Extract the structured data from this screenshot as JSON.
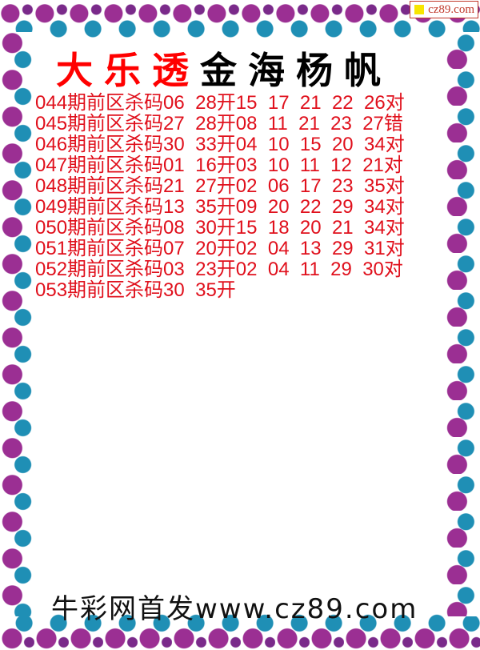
{
  "badge": {
    "text": "cz89.com",
    "color": "#f7e600"
  },
  "title": {
    "red": "大乐透",
    "black": "金海杨帆"
  },
  "row_labels": {
    "mid": "期前区杀码",
    "draw": "开"
  },
  "rows": [
    {
      "issue": "044",
      "kill": [
        "06",
        "28"
      ],
      "draw": [
        "15",
        "17",
        "21",
        "22",
        "26"
      ],
      "result": "对"
    },
    {
      "issue": "045",
      "kill": [
        "27",
        "28"
      ],
      "draw": [
        "08",
        "11",
        "21",
        "23",
        "27"
      ],
      "result": "错"
    },
    {
      "issue": "046",
      "kill": [
        "30",
        "33"
      ],
      "draw": [
        "04",
        "10",
        "15",
        "20",
        "34"
      ],
      "result": "对"
    },
    {
      "issue": "047",
      "kill": [
        "01",
        "16"
      ],
      "draw": [
        "03",
        "10",
        "11",
        "12",
        "21"
      ],
      "result": "对"
    },
    {
      "issue": "048",
      "kill": [
        "21",
        "27"
      ],
      "draw": [
        "02",
        "06",
        "17",
        "23",
        "35"
      ],
      "result": "对"
    },
    {
      "issue": "049",
      "kill": [
        "13",
        "35"
      ],
      "draw": [
        "09",
        "20",
        "22",
        "29",
        "34"
      ],
      "result": "对"
    },
    {
      "issue": "050",
      "kill": [
        "08",
        "30"
      ],
      "draw": [
        "15",
        "18",
        "20",
        "21",
        "34"
      ],
      "result": "对"
    },
    {
      "issue": "051",
      "kill": [
        "07",
        "20"
      ],
      "draw": [
        "02",
        "04",
        "13",
        "29",
        "31"
      ],
      "result": "对"
    },
    {
      "issue": "052",
      "kill": [
        "03",
        "23"
      ],
      "draw": [
        "02",
        "04",
        "11",
        "29",
        "30"
      ],
      "result": "对"
    },
    {
      "issue": "053",
      "kill": [
        "30",
        "35"
      ],
      "draw": [],
      "result": ""
    }
  ],
  "footer": "牛彩网首发www.cz89.com",
  "colors": {
    "text_red": "#e0101c",
    "border_purple": "#9b2f93",
    "border_teal": "#1f8fb5"
  }
}
